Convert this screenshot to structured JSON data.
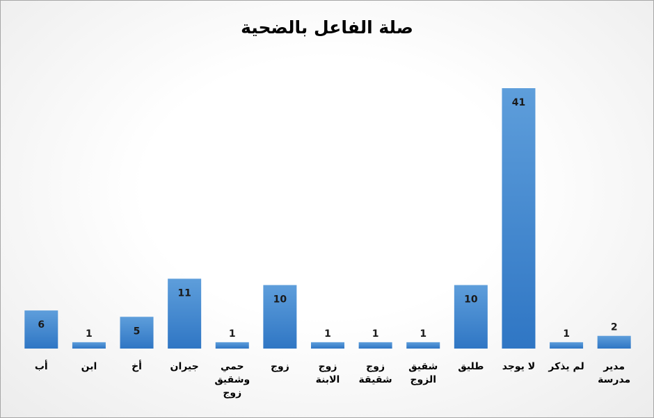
{
  "chart_data": {
    "type": "bar",
    "title": "صلة الفاعل بالضحية",
    "categories": [
      "أب",
      "ابن",
      "أخ",
      "جيران",
      "حمي\nوشقيق\nزوج",
      "زوج",
      "زوج\nالابنة",
      "زوج\nشقيقة",
      "شقيق\nالزوج",
      "طليق",
      "لا يوجد",
      "لم يذكر",
      "مدير\nمدرسة"
    ],
    "values": [
      6,
      1,
      5,
      11,
      1,
      10,
      1,
      1,
      1,
      10,
      41,
      1,
      2
    ],
    "color": "#3b82cc",
    "ylim": [
      0,
      41
    ]
  }
}
